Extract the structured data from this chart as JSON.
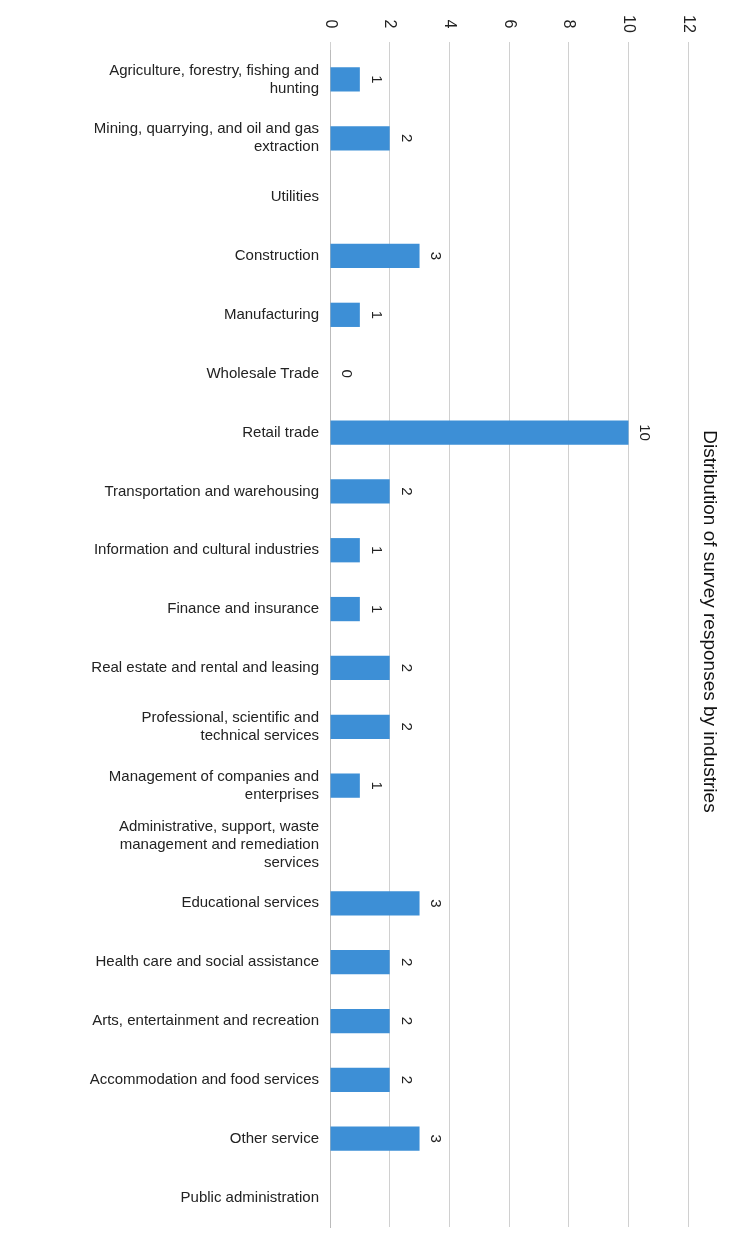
{
  "chart_data": {
    "type": "bar",
    "orientation": "horizontal",
    "title": "Distribution of survey responses by industries",
    "categories": [
      "Agriculture, forestry, fishing and hunting",
      "Mining, quarrying, and oil and gas extraction",
      "Utilities",
      "Construction",
      "Manufacturing",
      "Wholesale Trade",
      "Retail trade",
      "Transportation and warehousing",
      "Information and cultural industries",
      "Finance and insurance",
      "Real estate and rental and leasing",
      "Professional, scientific and technical services",
      "Management of companies and enterprises",
      "Administrative, support, waste management and remediation services",
      "Educational services",
      "Health care and social assistance",
      "Arts, entertainment and recreation",
      "Accommodation and food services",
      "Other service",
      "Public administration"
    ],
    "values": [
      1,
      2,
      null,
      3,
      1,
      0,
      10,
      2,
      1,
      1,
      2,
      2,
      1,
      null,
      3,
      2,
      2,
      2,
      3,
      null
    ],
    "value_labels": [
      "1",
      "2",
      null,
      "3",
      "1",
      "0",
      "10",
      "2",
      "1",
      "1",
      "2",
      "2",
      "1",
      null,
      "3",
      "2",
      "2",
      "2",
      "3",
      null
    ],
    "color": "#3d8fd6",
    "xlim": [
      0,
      12
    ],
    "xticks": [
      0,
      2,
      4,
      6,
      8,
      10,
      12
    ],
    "grid": "x",
    "legend": false
  }
}
